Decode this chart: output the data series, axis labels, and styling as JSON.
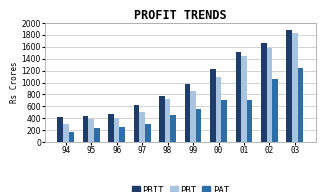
{
  "title": "PROFIT TRENDS",
  "ylabel": "Rs Crores",
  "years": [
    "94",
    "95",
    "96",
    "97",
    "98",
    "99",
    "00",
    "01",
    "02",
    "03"
  ],
  "PBIT": [
    420,
    430,
    470,
    630,
    780,
    980,
    1220,
    1510,
    1660,
    1880
  ],
  "PBT": [
    300,
    380,
    400,
    510,
    720,
    850,
    1100,
    1450,
    1580,
    1840
  ],
  "PAT": [
    170,
    230,
    250,
    310,
    460,
    560,
    700,
    700,
    1060,
    1240
  ],
  "color_PBIT": "#1F3D6B",
  "color_PBT": "#A8C4E0",
  "color_PAT": "#2E6EA6",
  "ylim": [
    0,
    2000
  ],
  "yticks": [
    0,
    200,
    400,
    600,
    800,
    1000,
    1200,
    1400,
    1600,
    1800,
    2000
  ],
  "bar_width": 0.22,
  "figure_facecolor": "#FFFFFF",
  "plot_facecolor": "#FFFFFF",
  "border_color": "#AAAAAA",
  "grid_color": "#CCCCCC",
  "title_fontsize": 8.5,
  "axis_label_fontsize": 5.5,
  "tick_fontsize": 5.5,
  "legend_fontsize": 6.5
}
